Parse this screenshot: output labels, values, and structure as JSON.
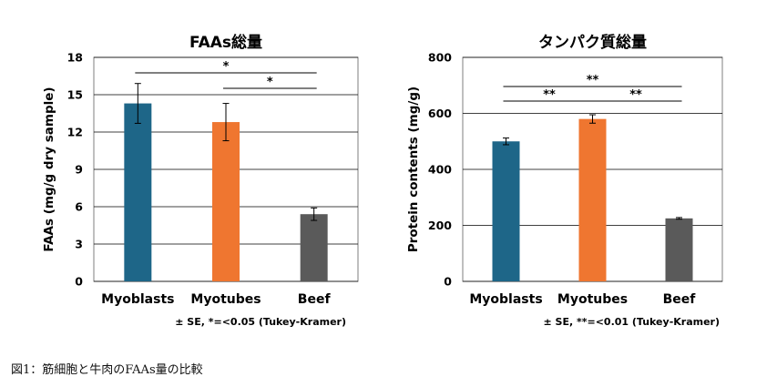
{
  "chart_data": [
    {
      "type": "bar",
      "title": "FAAs総量",
      "ylabel": "FAAs (mg/g dry sample)",
      "xlabel": "",
      "categories": [
        "Myoblasts",
        "Myotubes",
        "Beef"
      ],
      "values": [
        14.3,
        12.8,
        5.4
      ],
      "errors": [
        1.6,
        1.5,
        0.5
      ],
      "colors": [
        "#1e6688",
        "#ef7630",
        "#5a5a5a"
      ],
      "ylim": [
        0,
        18
      ],
      "yticks": [
        "0",
        "3",
        "6",
        "9",
        "12",
        "15",
        "18"
      ],
      "grid": true,
      "significance": [
        {
          "from": 0,
          "to": 2,
          "label": "*"
        },
        {
          "from": 1,
          "to": 2,
          "label": "*"
        }
      ],
      "note": "± SE, *=<0.05 (Tukey-Kramer)"
    },
    {
      "type": "bar",
      "title": "タンパク質総量",
      "ylabel": "Protein contents (mg/g)",
      "xlabel": "",
      "categories": [
        "Myoblasts",
        "Myotubes",
        "Beef"
      ],
      "values": [
        500,
        580,
        225
      ],
      "errors": [
        12,
        15,
        3
      ],
      "colors": [
        "#1e6688",
        "#ef7630",
        "#5a5a5a"
      ],
      "ylim": [
        0,
        800
      ],
      "yticks": [
        "0",
        "200",
        "400",
        "600",
        "800"
      ],
      "grid": true,
      "significance": [
        {
          "from": 0,
          "to": 2,
          "label": "**"
        },
        {
          "from": 0,
          "to": 1,
          "label": "**"
        },
        {
          "from": 1,
          "to": 2,
          "label": "**"
        }
      ],
      "note": "± SE, **=<0.01 (Tukey-Kramer)"
    }
  ],
  "caption": "図1：筋細胞と牛肉のFAAs量の比較"
}
